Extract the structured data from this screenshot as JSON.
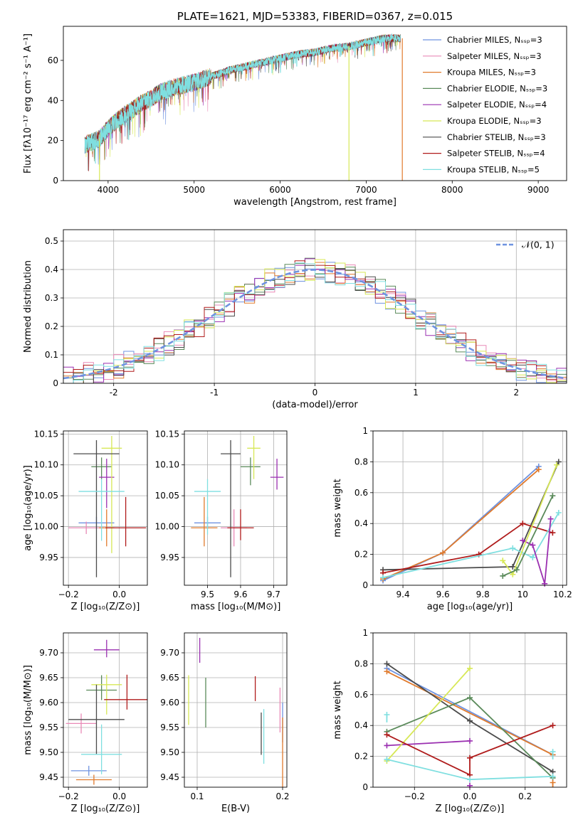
{
  "chart_data": [
    {
      "id": "spectrum",
      "type": "line",
      "title": "PLATE=1621, MJD=53383, FIBERID=0367, z=0.015",
      "xlabel": "wavelength [Angstrom, rest frame]",
      "ylabel": "Flux [fλ10⁻¹⁷ erg cm⁻² s⁻¹ A⁻¹]",
      "xlim": [
        3480,
        9330
      ],
      "ylim": [
        0,
        77
      ],
      "xticks": [
        4000,
        5000,
        6000,
        7000,
        8000,
        9000
      ],
      "yticks": [
        0,
        20,
        40,
        60
      ],
      "grid": false,
      "legend_position": "top-right",
      "continuum": {
        "x": [
          3730,
          3800,
          3900,
          4000,
          4100,
          4200,
          4300,
          4400,
          4500,
          4600,
          4800,
          5000,
          5200,
          5400,
          5600,
          5800,
          6000,
          6200,
          6400,
          6600,
          6800,
          7000,
          7200,
          7400
        ],
        "y": [
          18,
          19,
          21,
          26,
          30,
          33,
          36,
          39,
          41,
          44,
          47,
          49,
          52,
          55,
          57,
          59,
          61,
          63,
          64,
          66,
          67,
          69,
          71,
          71
        ]
      },
      "series": [
        {
          "name": "Chabrier MILES, Nₛₛₚ=3",
          "color": "#6f93e0"
        },
        {
          "name": "Salpeter MILES, Nₛₛₚ=3",
          "color": "#e98ab7"
        },
        {
          "name": "Kroupa MILES, Nₛₛₚ=3",
          "color": "#e07a2c"
        },
        {
          "name": "Chabrier ELODIE, Nₛₛₚ=3",
          "color": "#5a8a5a"
        },
        {
          "name": "Salpeter ELODIE, Nₛₛₚ=4",
          "color": "#9a2fb0"
        },
        {
          "name": "Kroupa ELODIE, Nₛₛₚ=3",
          "color": "#d7e856"
        },
        {
          "name": "Chabrier STELIB, Nₛₛₚ=3",
          "color": "#4b4b4b"
        },
        {
          "name": "Salpeter STELIB, Nₛₛₚ=4",
          "color": "#b01c1c"
        },
        {
          "name": "Kroupa STELIB, Nₛₛₚ=5",
          "color": "#7fdfe0"
        }
      ],
      "dropouts": [
        {
          "x": 3900,
          "color": "#d7e856"
        },
        {
          "x": 6800,
          "color": "#d7e856"
        },
        {
          "x": 7420,
          "color": "#e07a2c"
        }
      ]
    },
    {
      "id": "residuals",
      "type": "histogram",
      "xlabel": "(data-model)/error",
      "ylabel": "Normed distribution",
      "xlim": [
        -2.5,
        2.5
      ],
      "ylim": [
        0,
        0.54
      ],
      "xticks": [
        -2,
        -1,
        0,
        1,
        2
      ],
      "yticks": [
        0.0,
        0.1,
        0.2,
        0.3,
        0.4,
        0.5
      ],
      "grid": true,
      "legend_position": "top-right",
      "legend_label": "𝒩(0, 1)",
      "normal_curve": {
        "mean": 0,
        "sigma": 1,
        "color": "#6f93e0",
        "style": "dashed"
      },
      "bin_width": 0.1,
      "series_colors": [
        "#6f93e0",
        "#e98ab7",
        "#e07a2c",
        "#5a8a5a",
        "#9a2fb0",
        "#d7e856",
        "#4b4b4b",
        "#b01c1c",
        "#7fdfe0"
      ]
    },
    {
      "id": "age-vs-Z",
      "type": "errorbar",
      "xlabel": "Z [log₁₀(Z/Z⊙)]",
      "ylabel": "age  [log₁₀(age/yr)]",
      "xlim": [
        -0.22,
        0.11
      ],
      "ylim": [
        9.905,
        10.155
      ],
      "xticks": [
        -0.2,
        0.0
      ],
      "xticklabels": [
        "−0.2",
        "0.0"
      ],
      "yticks": [
        9.95,
        10.0,
        10.05,
        10.1,
        10.15
      ],
      "yticklabels": [
        "9.95",
        "10.00",
        "10.05",
        "10.10",
        "10.15"
      ],
      "grid": true,
      "points": [
        {
          "x": -0.09,
          "y": 10.006,
          "xerr": 0.07,
          "yerr": [
            0.01,
            0.01
          ],
          "color": "#6f93e0"
        },
        {
          "x": -0.13,
          "y": 9.998,
          "xerr": 0.07,
          "yerr": [
            0.01,
            0.01
          ],
          "color": "#e98ab7"
        },
        {
          "x": -0.05,
          "y": 9.998,
          "xerr": 0.03,
          "yerr": [
            0.03,
            0.03
          ],
          "color": "#e07a2c"
        },
        {
          "x": -0.07,
          "y": 10.097,
          "xerr": 0.04,
          "yerr": [
            0.02,
            0.015
          ],
          "color": "#5a8a5a"
        },
        {
          "x": -0.05,
          "y": 10.08,
          "xerr": 0.03,
          "yerr": [
            0.05,
            0.03
          ],
          "color": "#9a2fb0"
        },
        {
          "x": -0.03,
          "y": 10.127,
          "xerr": 0.04,
          "yerr": [
            0.17,
            0.02
          ],
          "color": "#d7e856"
        },
        {
          "x": -0.09,
          "y": 10.118,
          "xerr": 0.09,
          "yerr": [
            0.2,
            0.022
          ],
          "color": "#4b4b4b"
        },
        {
          "x": 0.025,
          "y": 9.998,
          "xerr": 0.08,
          "yerr": [
            0.03,
            0.05
          ],
          "color": "#b01c1c"
        },
        {
          "x": -0.07,
          "y": 10.057,
          "xerr": 0.09,
          "yerr": [
            0.08,
            0.02
          ],
          "color": "#7fdfe0"
        }
      ]
    },
    {
      "id": "age-vs-mass",
      "type": "errorbar",
      "xlabel": "mass [log₁₀(M/M⊙)]",
      "ylabel": "",
      "xlim": [
        9.43,
        9.74
      ],
      "ylim": [
        9.905,
        10.155
      ],
      "xticks": [
        9.5,
        9.6,
        9.7
      ],
      "yticks": [
        9.95,
        10.0,
        10.05,
        10.1,
        10.15
      ],
      "yticklabels": [
        "9.95",
        "10.00",
        "10.05",
        "10.10",
        "10.15"
      ],
      "grid": true,
      "points": [
        {
          "x": 9.5,
          "y": 10.006,
          "xerr": 0.04,
          "yerr": [
            0.01,
            0.01
          ],
          "color": "#6f93e0"
        },
        {
          "x": 9.58,
          "y": 9.998,
          "xerr": 0.04,
          "yerr": [
            0.03,
            0.03
          ],
          "color": "#e98ab7"
        },
        {
          "x": 9.49,
          "y": 9.998,
          "xerr": 0.04,
          "yerr": [
            0.03,
            0.05
          ],
          "color": "#e07a2c"
        },
        {
          "x": 9.63,
          "y": 10.097,
          "xerr": 0.03,
          "yerr": [
            0.03,
            0.015
          ],
          "color": "#5a8a5a"
        },
        {
          "x": 9.71,
          "y": 10.08,
          "xerr": 0.02,
          "yerr": [
            0.02,
            0.03
          ],
          "color": "#9a2fb0"
        },
        {
          "x": 9.64,
          "y": 10.127,
          "xerr": 0.02,
          "yerr": [
            0.05,
            0.02
          ],
          "color": "#d7e856"
        },
        {
          "x": 9.57,
          "y": 10.118,
          "xerr": 0.03,
          "yerr": [
            0.2,
            0.022
          ],
          "color": "#4b4b4b"
        },
        {
          "x": 9.6,
          "y": 9.998,
          "xerr": 0.04,
          "yerr": [
            0.02,
            0.03
          ],
          "color": "#b01c1c"
        },
        {
          "x": 9.5,
          "y": 10.057,
          "xerr": 0.04,
          "yerr": [
            0.07,
            0.02
          ],
          "color": "#7fdfe0"
        }
      ]
    },
    {
      "id": "weight-vs-age",
      "type": "line",
      "xlabel": "age  [log₁₀(age/yr)]",
      "ylabel": "mass weight",
      "xlim": [
        9.25,
        10.22
      ],
      "ylim": [
        0.0,
        1.0
      ],
      "xticks": [
        9.4,
        9.6,
        9.8,
        10.0,
        10.2
      ],
      "yticks": [
        0.0,
        0.2,
        0.4,
        0.6,
        0.8,
        1.0
      ],
      "grid": true,
      "series": [
        {
          "color": "#6f93e0",
          "x": [
            9.3,
            9.6,
            10.08
          ],
          "y": [
            0.03,
            0.21,
            0.77
          ]
        },
        {
          "color": "#e07a2c",
          "x": [
            9.3,
            9.6,
            10.08
          ],
          "y": [
            0.04,
            0.21,
            0.75
          ]
        },
        {
          "color": "#4b4b4b",
          "x": [
            9.3,
            9.95,
            10.18
          ],
          "y": [
            0.1,
            0.12,
            0.8
          ]
        },
        {
          "color": "#b01c1c",
          "x": [
            9.3,
            9.78,
            10.0,
            10.15
          ],
          "y": [
            0.08,
            0.2,
            0.4,
            0.34
          ]
        },
        {
          "color": "#7fdfe0",
          "x": [
            9.3,
            9.95,
            10.05,
            10.18
          ],
          "y": [
            0.05,
            0.24,
            0.18,
            0.47
          ]
        },
        {
          "color": "#9a2fb0",
          "x": [
            10.0,
            10.05,
            10.11,
            10.14
          ],
          "y": [
            0.29,
            0.26,
            0.01,
            0.43
          ]
        },
        {
          "color": "#d7e856",
          "x": [
            9.9,
            9.95,
            10.17
          ],
          "y": [
            0.16,
            0.07,
            0.78
          ]
        },
        {
          "color": "#5a8a5a",
          "x": [
            9.9,
            9.97,
            10.15
          ],
          "y": [
            0.06,
            0.1,
            0.58
          ]
        }
      ]
    },
    {
      "id": "mass-vs-Z",
      "type": "errorbar",
      "xlabel": "Z [log₁₀(Z/Z⊙)]",
      "ylabel": "mass [log₁₀(M/M⊙)]",
      "xlim": [
        -0.22,
        0.11
      ],
      "ylim": [
        9.43,
        9.74
      ],
      "xticks": [
        -0.2,
        0.0
      ],
      "xticklabels": [
        "−0.2",
        "0.0"
      ],
      "yticks": [
        9.45,
        9.5,
        9.55,
        9.6,
        9.65,
        9.7
      ],
      "yticklabels": [
        "9.45",
        "9.50",
        "9.55",
        "9.60",
        "9.65",
        "9.70"
      ],
      "grid": true,
      "points": [
        {
          "x": -0.12,
          "y": 9.463,
          "xerr": 0.07,
          "yerr": [
            0.01,
            0.01
          ],
          "color": "#6f93e0"
        },
        {
          "x": -0.15,
          "y": 9.558,
          "xerr": 0.06,
          "yerr": [
            0.02,
            0.02
          ],
          "color": "#e98ab7"
        },
        {
          "x": -0.1,
          "y": 9.445,
          "xerr": 0.07,
          "yerr": [
            0.01,
            0.01
          ],
          "color": "#e07a2c"
        },
        {
          "x": -0.07,
          "y": 9.625,
          "xerr": 0.06,
          "yerr": [
            0.02,
            0.03
          ],
          "color": "#5a8a5a"
        },
        {
          "x": -0.05,
          "y": 9.706,
          "xerr": 0.05,
          "yerr": [
            0.015,
            0.02
          ],
          "color": "#9a2fb0"
        },
        {
          "x": -0.05,
          "y": 9.636,
          "xerr": 0.06,
          "yerr": [
            0.06,
            0.02
          ],
          "color": "#d7e856"
        },
        {
          "x": -0.09,
          "y": 9.566,
          "xerr": 0.11,
          "yerr": [
            0.07,
            0.07
          ],
          "color": "#4b4b4b"
        },
        {
          "x": 0.03,
          "y": 9.606,
          "xerr": 0.09,
          "yerr": [
            0.02,
            0.05
          ],
          "color": "#b01c1c"
        },
        {
          "x": -0.07,
          "y": 9.496,
          "xerr": 0.08,
          "yerr": [
            0.04,
            0.06
          ],
          "color": "#7fdfe0"
        }
      ]
    },
    {
      "id": "mass-vs-ebv",
      "type": "errorbar",
      "xlabel": "E(B-V)",
      "ylabel": "",
      "xlim": [
        0.085,
        0.205
      ],
      "ylim": [
        9.43,
        9.74
      ],
      "xticks": [
        0.1,
        0.2
      ],
      "yticks": [
        9.45,
        9.5,
        9.55,
        9.6,
        9.65,
        9.7
      ],
      "yticklabels": [
        "9.45",
        "9.50",
        "9.55",
        "9.60",
        "9.65",
        "9.70"
      ],
      "grid": true,
      "points": [
        {
          "x": 0.2,
          "y": 9.56,
          "xerr": 0,
          "yerr": [
            0.04,
            0.04
          ],
          "color": "#6f93e0"
        },
        {
          "x": 0.197,
          "y": 9.58,
          "xerr": 0,
          "yerr": [
            0.04,
            0.05
          ],
          "color": "#e98ab7"
        },
        {
          "x": 0.2,
          "y": 9.5,
          "xerr": 0,
          "yerr": [
            0.07,
            0.07
          ],
          "color": "#e07a2c"
        },
        {
          "x": 0.11,
          "y": 9.6,
          "xerr": 0,
          "yerr": [
            0.05,
            0.05
          ],
          "color": "#5a8a5a"
        },
        {
          "x": 0.103,
          "y": 9.705,
          "xerr": 0,
          "yerr": [
            0.025,
            0.025
          ],
          "color": "#9a2fb0"
        },
        {
          "x": 0.09,
          "y": 9.6,
          "xerr": 0,
          "yerr": [
            0.045,
            0.055
          ],
          "color": "#d7e856"
        },
        {
          "x": 0.175,
          "y": 9.535,
          "xerr": 0,
          "yerr": [
            0.04,
            0.045
          ],
          "color": "#4b4b4b"
        },
        {
          "x": 0.168,
          "y": 9.628,
          "xerr": 0,
          "yerr": [
            0.025,
            0.025
          ],
          "color": "#b01c1c"
        },
        {
          "x": 0.178,
          "y": 9.532,
          "xerr": 0,
          "yerr": [
            0.055,
            0.055
          ],
          "color": "#7fdfe0"
        }
      ]
    },
    {
      "id": "weight-vs-Z",
      "type": "line",
      "xlabel": "Z [log₁₀(Z/Z⊙)]",
      "ylabel": "mass weight",
      "xlim": [
        -0.35,
        0.35
      ],
      "ylim": [
        0.0,
        1.0
      ],
      "xticks": [
        -0.2,
        0.0,
        0.2
      ],
      "xticklabels": [
        "−0.2",
        "0.0",
        "0.2"
      ],
      "yticks": [
        0.0,
        0.2,
        0.4,
        0.6,
        0.8,
        1.0
      ],
      "grid": true,
      "series": [
        {
          "color": "#6f93e0",
          "x": [
            -0.3,
            0.3
          ],
          "y": [
            0.77,
            0.21
          ]
        },
        {
          "color": "#e07a2c",
          "x": [
            -0.3,
            0.3
          ],
          "y": [
            0.75,
            0.21
          ]
        },
        {
          "color": "#4b4b4b",
          "x": [
            -0.3,
            0.0,
            0.3
          ],
          "y": [
            0.8,
            0.43,
            0.1
          ]
        },
        {
          "color": "#5a8a5a",
          "x": [
            -0.3,
            0.0,
            0.3
          ],
          "y": [
            0.36,
            0.58,
            0.06
          ]
        },
        {
          "color": "#9a2fb0",
          "x": [
            -0.3,
            0.0
          ],
          "y": [
            0.27,
            0.3
          ]
        },
        {
          "color": "#d7e856",
          "x": [
            -0.3,
            0.0
          ],
          "y": [
            0.17,
            0.77
          ]
        },
        {
          "color": "#b01c1c",
          "x": [
            -0.3,
            0.0,
            0.0,
            0.3
          ],
          "y": [
            0.34,
            0.08,
            0.19,
            0.4
          ]
        },
        {
          "color": "#7fdfe0",
          "x": [
            -0.3,
            0.0,
            0.3
          ],
          "y": [
            0.18,
            0.05,
            0.07
          ]
        }
      ],
      "markers": [
        {
          "x": -0.3,
          "y": 0.47,
          "color": "#7fdfe0"
        },
        {
          "x": 0.0,
          "y": 0.01,
          "color": "#9a2fb0"
        },
        {
          "x": 0.3,
          "y": 0.03,
          "color": "#e07a2c"
        },
        {
          "x": 0.3,
          "y": 0.23,
          "color": "#7fdfe0"
        }
      ]
    }
  ]
}
